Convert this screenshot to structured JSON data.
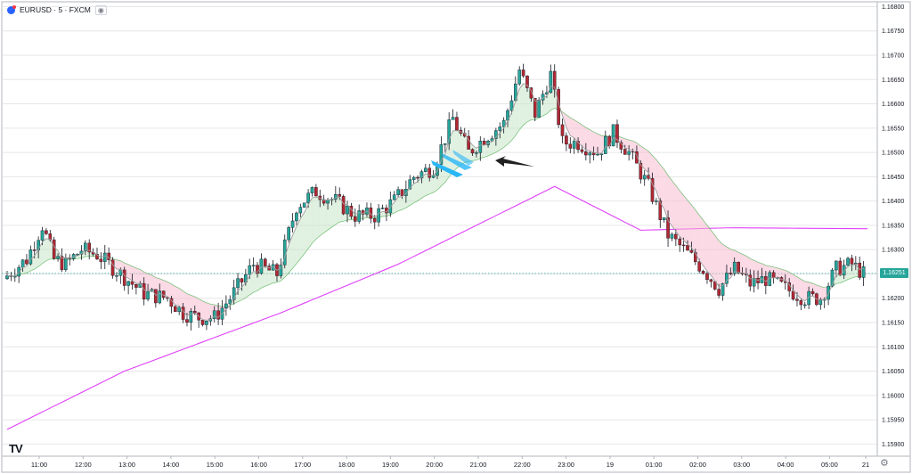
{
  "header": {
    "symbol": "EURUSD",
    "interval": "5",
    "exchange": "FXCM",
    "title": "EURUSD · 5 · FXCM",
    "eye_icon": "eye-icon"
  },
  "branding": {
    "logo_text": "TV"
  },
  "colors": {
    "up": "#26a69a",
    "down": "#b22833",
    "wick": "#131722",
    "ema_fast": "#9e9e9e",
    "ema_band": "#4caf50",
    "band_up_fill": "#c8e6c9",
    "band_down_fill": "#f8bbd0",
    "long_ma": "#e040fb",
    "grid": "#e6e6e6",
    "last_price_line": "#26a69a",
    "arrow_blue": "#29b6f6",
    "arrow_black": "#212121"
  },
  "chart_data": {
    "type": "candlestick",
    "symbol": "EURUSD",
    "timeframe": "5",
    "y_range": [
      1.15875,
      1.1681
    ],
    "y_ticks": [
      "1.16800",
      "1.16750",
      "1.16700",
      "1.16650",
      "1.16600",
      "1.16550",
      "1.16500",
      "1.16450",
      "1.16400",
      "1.16350",
      "1.16300",
      "1.16250",
      "1.16200",
      "1.16150",
      "1.16100",
      "1.16050",
      "1.16000",
      "1.15950",
      "1.15900"
    ],
    "x_ticks": [
      "11:00",
      "12:00",
      "13:00",
      "14:00",
      "15:00",
      "16:00",
      "17:00",
      "18:00",
      "19:00",
      "20:00",
      "21:00",
      "22:00",
      "23:00",
      "19",
      "01:00",
      "02:00",
      "03:00",
      "04:00",
      "05:00",
      "21"
    ],
    "last_price": "1.16251",
    "price_path": [
      [
        0,
        1.1624
      ],
      [
        6,
        1.1628
      ],
      [
        10,
        1.1635
      ],
      [
        13,
        1.1628
      ],
      [
        16,
        1.1627
      ],
      [
        20,
        1.163
      ],
      [
        24,
        1.1629
      ],
      [
        30,
        1.1625
      ],
      [
        36,
        1.1621
      ],
      [
        42,
        1.162
      ],
      [
        46,
        1.1617
      ],
      [
        50,
        1.1616
      ],
      [
        54,
        1.1616
      ],
      [
        58,
        1.162
      ],
      [
        64,
        1.1627
      ],
      [
        70,
        1.1625
      ],
      [
        75,
        1.1639
      ],
      [
        80,
        1.1642
      ],
      [
        85,
        1.164
      ],
      [
        90,
        1.1637
      ],
      [
        95,
        1.1637
      ],
      [
        100,
        1.164
      ],
      [
        105,
        1.1645
      ],
      [
        110,
        1.1647
      ],
      [
        115,
        1.1657
      ],
      [
        119,
        1.165
      ],
      [
        123,
        1.1653
      ],
      [
        128,
        1.1656
      ],
      [
        132,
        1.1667
      ],
      [
        136,
        1.1658
      ],
      [
        140,
        1.1666
      ],
      [
        143,
        1.1652
      ],
      [
        147,
        1.1652
      ],
      [
        152,
        1.165
      ],
      [
        156,
        1.1654
      ],
      [
        160,
        1.165
      ],
      [
        165,
        1.1643
      ],
      [
        170,
        1.1633
      ],
      [
        174,
        1.163
      ],
      [
        179,
        1.1626
      ],
      [
        183,
        1.1622
      ],
      [
        187,
        1.1626
      ],
      [
        191,
        1.1623
      ],
      [
        195,
        1.1624
      ],
      [
        200,
        1.1622
      ],
      [
        205,
        1.162
      ],
      [
        209,
        1.162
      ],
      [
        213,
        1.1626
      ],
      [
        217,
        1.1627
      ],
      [
        220,
        1.1625
      ]
    ],
    "series": [
      {
        "name": ""
      },
      {
        "name": ""
      },
      {
        "name": ""
      },
      {
        "name": ""
      }
    ],
    "long_ma_path": [
      [
        0,
        1.1593
      ],
      [
        30,
        1.1605
      ],
      [
        70,
        1.1617
      ],
      [
        100,
        1.1627
      ],
      [
        140,
        1.1643
      ],
      [
        162,
        1.1634
      ],
      [
        185,
        1.16345
      ],
      [
        220,
        1.16343
      ]
    ],
    "grid": true
  }
}
